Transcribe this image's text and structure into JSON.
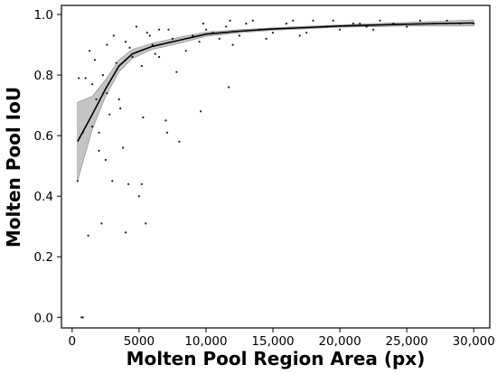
{
  "chart_data": {
    "type": "scatter",
    "xlabel": "Molten Pool Region Area (px)",
    "ylabel": "Molten Pool IoU",
    "xlim": [
      -800,
      31200
    ],
    "ylim": [
      -0.035,
      1.03
    ],
    "x_ticks": [
      0,
      5000,
      10000,
      15000,
      20000,
      25000,
      30000
    ],
    "x_tick_labels": [
      "0",
      "5000",
      "10,000",
      "15,000",
      "20,000",
      "25,000",
      "30,000"
    ],
    "y_ticks": [
      0.0,
      0.2,
      0.4,
      0.6,
      0.8,
      1.0
    ],
    "y_tick_labels": [
      "0.0",
      "0.2",
      "0.4",
      "0.6",
      "0.8",
      "1.0"
    ],
    "grid": false,
    "legend": "none",
    "colors": {
      "points": "#1a1a1a",
      "trend": "#000000",
      "band": "#b5b5b5"
    },
    "series": [
      {
        "kind": "trend_line",
        "x": [
          400,
          1500,
          2500,
          3500,
          4500,
          6000,
          8000,
          10000,
          12500,
          15000,
          17500,
          20000,
          25000,
          30000
        ],
        "y": [
          0.58,
          0.67,
          0.755,
          0.83,
          0.87,
          0.895,
          0.915,
          0.935,
          0.945,
          0.952,
          0.957,
          0.962,
          0.968,
          0.972
        ]
      },
      {
        "kind": "confidence_band",
        "x": [
          400,
          1500,
          2500,
          3500,
          4500,
          6000,
          8000,
          10000,
          12500,
          15000,
          17500,
          20000,
          25000,
          30000
        ],
        "lower": [
          0.45,
          0.62,
          0.73,
          0.81,
          0.855,
          0.885,
          0.905,
          0.928,
          0.94,
          0.948,
          0.953,
          0.958,
          0.962,
          0.962
        ],
        "upper": [
          0.71,
          0.73,
          0.785,
          0.85,
          0.885,
          0.905,
          0.925,
          0.942,
          0.95,
          0.956,
          0.961,
          0.966,
          0.974,
          0.982
        ]
      },
      {
        "kind": "scatter_points",
        "x": [
          400,
          700,
          800,
          1200,
          1500,
          1800,
          2000,
          2200,
          2500,
          2800,
          3000,
          3500,
          3800,
          4000,
          4200,
          4500,
          5000,
          5200,
          5500,
          6000,
          6500,
          7000,
          7500,
          8000,
          8500,
          9000,
          9500,
          10000,
          11000,
          11500,
          12000,
          13000,
          14000,
          15000,
          16000,
          17000,
          18000,
          19000,
          20000,
          21000,
          22000,
          23000,
          24000,
          25000,
          26000,
          27000,
          28000,
          29000,
          30000,
          1000,
          1300,
          1700,
          2300,
          2600,
          3300,
          4300,
          5800,
          6200,
          7200,
          9800,
          10500,
          11800,
          12500,
          13500,
          14500,
          16500,
          17500,
          19500,
          21500,
          22500,
          500,
          800,
          1500,
          2600,
          3100,
          4000,
          5300,
          5600,
          7800,
          9600,
          11700,
          3600,
          6500,
          7100,
          2000,
          4800,
          5200
        ],
        "y": [
          0.45,
          0.0,
          0.0,
          0.27,
          0.63,
          0.72,
          0.55,
          0.31,
          0.52,
          0.67,
          0.45,
          0.72,
          0.56,
          0.28,
          0.44,
          0.86,
          0.4,
          0.83,
          0.31,
          0.9,
          0.86,
          0.65,
          0.92,
          0.58,
          0.88,
          0.93,
          0.91,
          0.95,
          0.92,
          0.96,
          0.9,
          0.97,
          0.95,
          0.94,
          0.97,
          0.93,
          0.98,
          0.96,
          0.95,
          0.97,
          0.96,
          0.98,
          0.97,
          0.96,
          0.98,
          0.97,
          0.98,
          0.97,
          0.97,
          0.79,
          0.88,
          0.85,
          0.8,
          0.9,
          0.84,
          0.89,
          0.93,
          0.87,
          0.95,
          0.97,
          0.94,
          0.98,
          0.93,
          0.98,
          0.92,
          0.98,
          0.94,
          0.98,
          0.97,
          0.95,
          0.79,
          0.61,
          0.77,
          0.74,
          0.93,
          0.91,
          0.66,
          0.94,
          0.81,
          0.68,
          0.76,
          0.69,
          0.95,
          0.61,
          0.61,
          0.96,
          0.44
        ]
      }
    ]
  }
}
